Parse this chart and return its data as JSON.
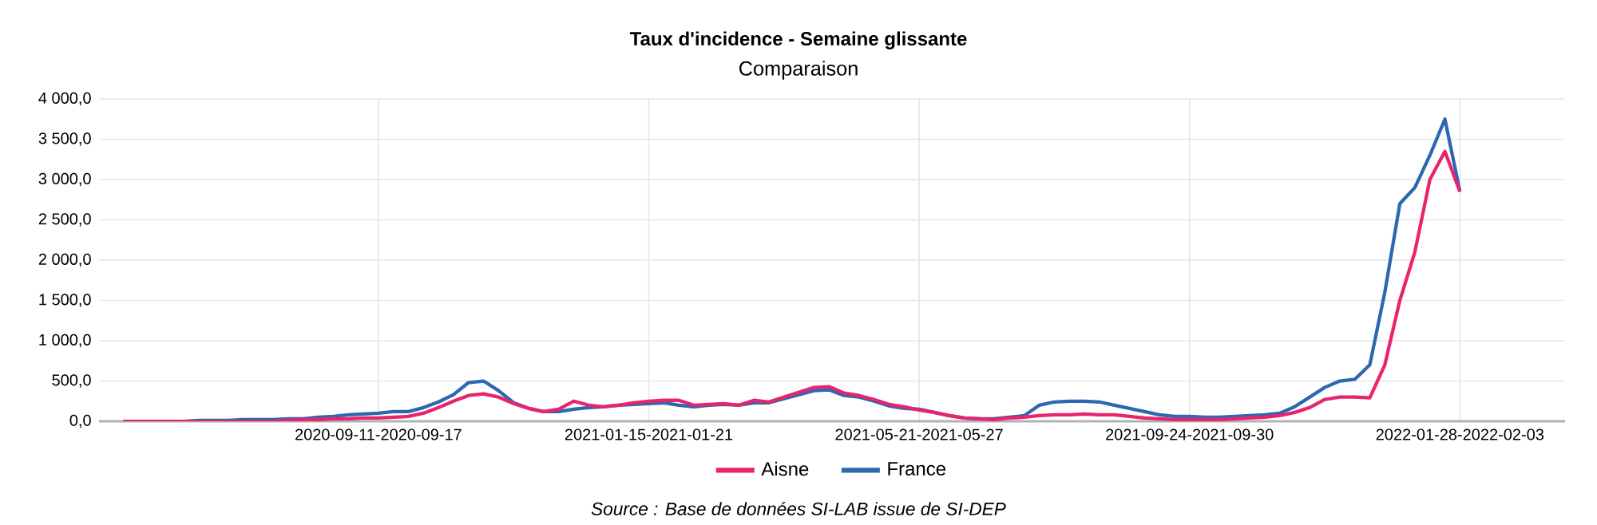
{
  "chart_data": {
    "type": "line",
    "title": "Taux d'incidence - Semaine glissante",
    "subtitle": "Comparaison",
    "categories": [
      null,
      null,
      null,
      null,
      null,
      null,
      null,
      null,
      null,
      null,
      null,
      null,
      null,
      null,
      null,
      null,
      null,
      "2020-09-11-2020-09-17",
      null,
      null,
      null,
      null,
      null,
      null,
      null,
      null,
      null,
      null,
      null,
      null,
      null,
      null,
      null,
      null,
      null,
      "2021-01-15-2021-01-21",
      null,
      null,
      null,
      null,
      null,
      null,
      null,
      null,
      null,
      null,
      null,
      null,
      null,
      null,
      null,
      null,
      null,
      "2021-05-21-2021-05-27",
      null,
      null,
      null,
      null,
      null,
      null,
      null,
      null,
      null,
      null,
      null,
      null,
      null,
      null,
      null,
      null,
      null,
      "2021-09-24-2021-09-30",
      null,
      null,
      null,
      null,
      null,
      null,
      null,
      null,
      null,
      null,
      null,
      null,
      null,
      null,
      null,
      null,
      null,
      "2022-01-28-2022-02-03"
    ],
    "series": [
      {
        "name": "Aisne",
        "color": "#e8246e",
        "values": [
          0,
          0,
          0,
          0,
          0,
          0,
          0,
          0,
          0,
          0,
          0,
          10,
          20,
          20,
          30,
          30,
          40,
          40,
          50,
          60,
          100,
          170,
          250,
          320,
          340,
          300,
          220,
          160,
          120,
          150,
          250,
          200,
          180,
          200,
          230,
          250,
          260,
          260,
          200,
          210,
          220,
          200,
          260,
          240,
          300,
          360,
          420,
          430,
          350,
          320,
          270,
          210,
          180,
          140,
          110,
          70,
          40,
          30,
          20,
          40,
          50,
          70,
          80,
          80,
          90,
          80,
          80,
          60,
          40,
          30,
          20,
          20,
          20,
          20,
          30,
          40,
          50,
          70,
          110,
          170,
          270,
          300,
          300,
          290,
          700,
          1500,
          2100,
          3000,
          3350,
          2850
        ]
      },
      {
        "name": "France",
        "color": "#2c68b0",
        "values": [
          null,
          null,
          null,
          0,
          0,
          10,
          10,
          10,
          20,
          20,
          20,
          30,
          30,
          50,
          60,
          80,
          90,
          100,
          120,
          120,
          170,
          240,
          330,
          480,
          500,
          380,
          230,
          160,
          120,
          120,
          150,
          170,
          180,
          200,
          210,
          220,
          230,
          200,
          180,
          200,
          210,
          200,
          230,
          230,
          280,
          330,
          380,
          390,
          320,
          300,
          250,
          190,
          160,
          150,
          110,
          70,
          40,
          30,
          30,
          50,
          70,
          200,
          240,
          250,
          250,
          240,
          200,
          160,
          120,
          80,
          60,
          60,
          50,
          50,
          60,
          70,
          80,
          100,
          180,
          300,
          420,
          500,
          520,
          700,
          1600,
          2700,
          2900,
          3300,
          3750,
          2850
        ]
      }
    ],
    "ylim": [
      0,
      4000
    ],
    "yticks": [
      {
        "value": 0,
        "label": "0,0"
      },
      {
        "value": 500,
        "label": "500,0"
      },
      {
        "value": 1000,
        "label": "1 000,0"
      },
      {
        "value": 1500,
        "label": "1 500,0"
      },
      {
        "value": 2000,
        "label": "2 000,0"
      },
      {
        "value": 2500,
        "label": "2 500,0"
      },
      {
        "value": 3000,
        "label": "3 000,0"
      },
      {
        "value": 3500,
        "label": "3 500,0"
      },
      {
        "value": 4000,
        "label": "4 000,0"
      }
    ],
    "grid": true,
    "legend": "bottom",
    "marker": "none",
    "line_style": "solid",
    "annotations": [
      "*Source : Base de données SI-LAB issue de SI-DEP*"
    ]
  }
}
